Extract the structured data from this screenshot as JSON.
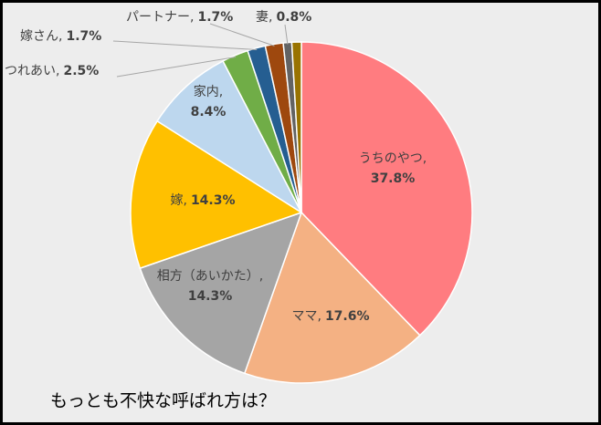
{
  "chart_data": {
    "type": "pie",
    "title": "もっとも不快な呼ばれ方は？",
    "categories": [
      "うちのやつ",
      "ママ",
      "相方（あいかた）",
      "嫁",
      "家内",
      "つれあい",
      "嫁さん",
      "パートナー",
      "妻",
      null
    ],
    "values": [
      37.8,
      17.6,
      14.3,
      14.3,
      8.4,
      2.5,
      1.7,
      1.7,
      0.8,
      0.9
    ],
    "value_labels": [
      "37.8%",
      "17.6%",
      "14.3%",
      "14.3%",
      "8.4%",
      "2.5%",
      "1.7%",
      "1.7%",
      "0.8%",
      null
    ],
    "label_separator": ",",
    "colors": [
      "#ff7c80",
      "#f4b183",
      "#a5a5a5",
      "#ffc000",
      "#bdd7ee",
      "#70ad47",
      "#255e91",
      "#9e480e",
      "#636363",
      "#997300"
    ]
  }
}
